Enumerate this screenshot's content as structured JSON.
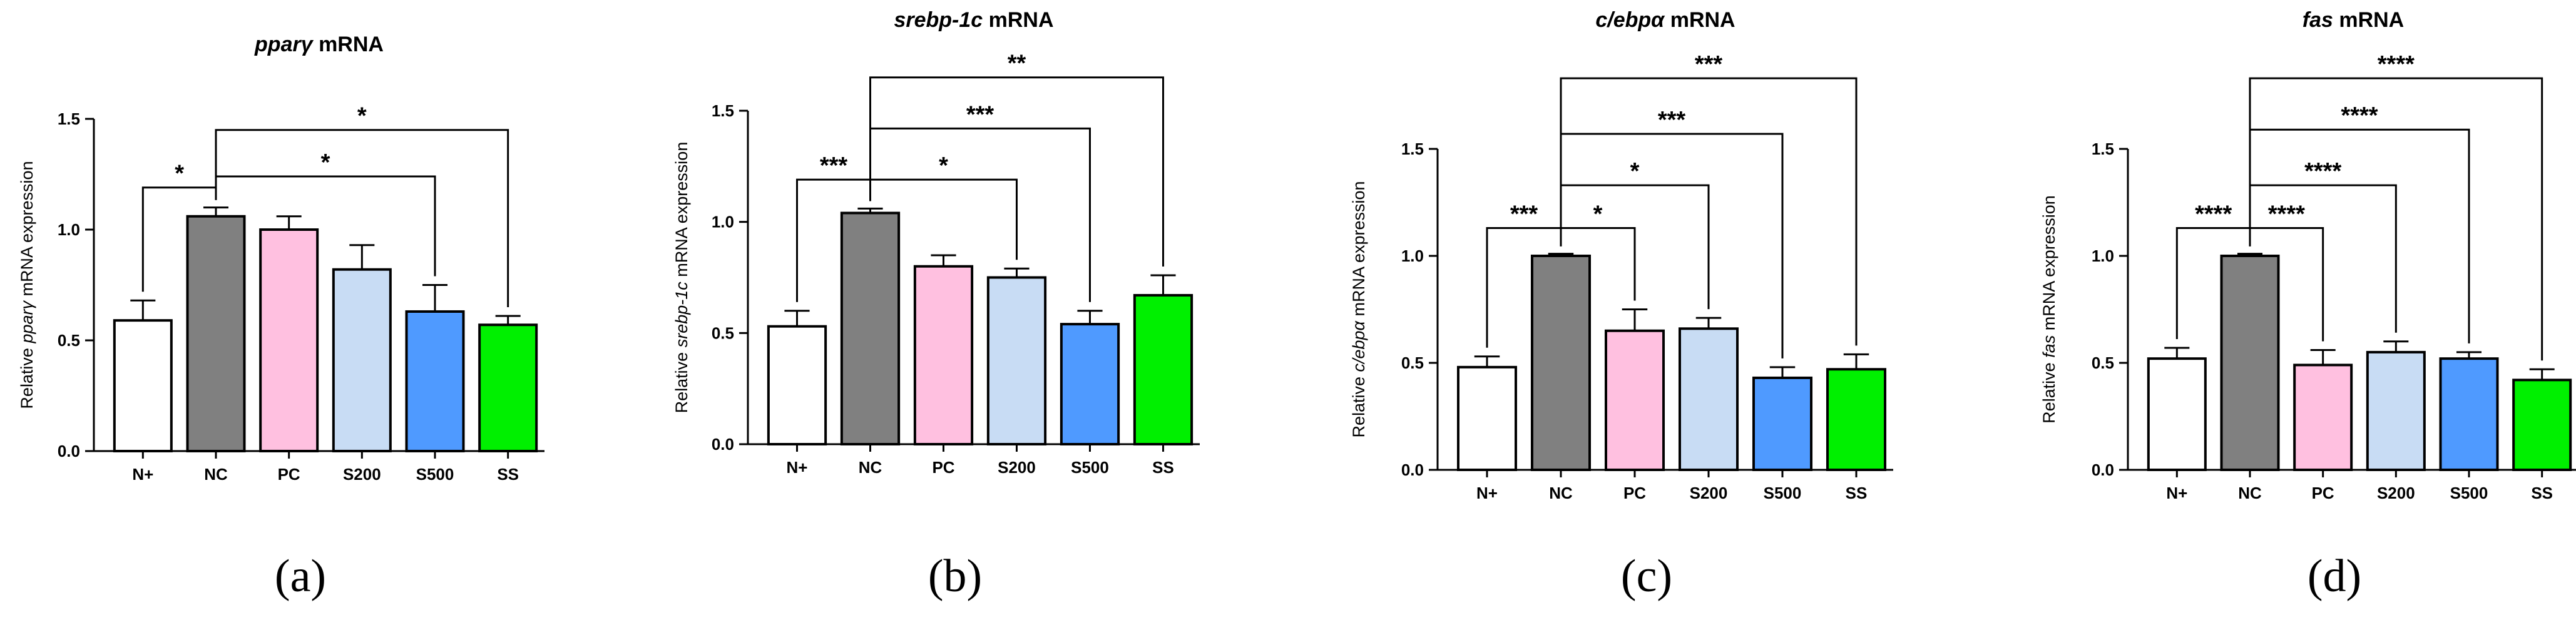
{
  "colors": {
    "N+": "#ffffff",
    "NC": "#808080",
    "PC": "#ffc0e0",
    "S200": "#c8dcf4",
    "S500": "#4f9aff",
    "SS": "#00f000"
  },
  "chart_data": [
    {
      "type": "bar",
      "panel_label": "(a)",
      "title_gene": "pparγ",
      "title_suffix": " mRNA",
      "ylabel_prefix": "Relative ",
      "ylabel_gene": "pparγ",
      "ylabel_suffix": " mRNA expression",
      "ylim": [
        0,
        1.5
      ],
      "yticks": [
        "0.0",
        "0.5",
        "1.0",
        "1.5"
      ],
      "categories": [
        "N+",
        "NC",
        "PC",
        "S200",
        "S500",
        "SS"
      ],
      "values": [
        0.59,
        1.06,
        1.0,
        0.82,
        0.63,
        0.57
      ],
      "errors": [
        0.09,
        0.04,
        0.06,
        0.11,
        0.12,
        0.04
      ],
      "significance": [
        {
          "from": 1,
          "to": 0,
          "label": "*",
          "y": 1.19
        },
        {
          "from": 1,
          "to": 4,
          "label": "*",
          "y": 1.24
        },
        {
          "from": 1,
          "to": 5,
          "label": "*",
          "y": 1.45
        }
      ]
    },
    {
      "type": "bar",
      "panel_label": "(b)",
      "title_gene": "srebp-1c",
      "title_suffix": " mRNA",
      "ylabel_prefix": "Relative ",
      "ylabel_gene": "srebp-1c",
      "ylabel_suffix": " mRNA expression",
      "ylim": [
        0,
        1.5
      ],
      "yticks": [
        "0.0",
        "0.5",
        "1.0",
        "1.5"
      ],
      "categories": [
        "N+",
        "NC",
        "PC",
        "S200",
        "S500",
        "SS"
      ],
      "values": [
        0.53,
        1.04,
        0.8,
        0.75,
        0.54,
        0.67
      ],
      "errors": [
        0.07,
        0.02,
        0.05,
        0.04,
        0.06,
        0.09
      ],
      "significance": [
        {
          "from": 1,
          "to": 0,
          "label": "***",
          "y": 1.19
        },
        {
          "from": 1,
          "to": 3,
          "label": "*",
          "y": 1.19
        },
        {
          "from": 1,
          "to": 4,
          "label": "***",
          "y": 1.42
        },
        {
          "from": 1,
          "to": 5,
          "label": "**",
          "y": 1.65
        }
      ]
    },
    {
      "type": "bar",
      "panel_label": "(c)",
      "title_gene": "c/ebpα",
      "title_suffix": " mRNA",
      "ylabel_prefix": "Relative ",
      "ylabel_gene": "c/ebpα",
      "ylabel_suffix": " mRNA expression",
      "ylim": [
        0,
        1.5
      ],
      "yticks": [
        "0.0",
        "0.5",
        "1.0",
        "1.5"
      ],
      "categories": [
        "N+",
        "NC",
        "PC",
        "S200",
        "S500",
        "SS"
      ],
      "values": [
        0.48,
        1.0,
        0.65,
        0.66,
        0.43,
        0.47
      ],
      "errors": [
        0.05,
        0.01,
        0.1,
        0.05,
        0.05,
        0.07
      ],
      "significance": [
        {
          "from": 1,
          "to": 0,
          "label": "***",
          "y": 1.13
        },
        {
          "from": 1,
          "to": 2,
          "label": "*",
          "y": 1.13
        },
        {
          "from": 1,
          "to": 3,
          "label": "*",
          "y": 1.33
        },
        {
          "from": 1,
          "to": 4,
          "label": "***",
          "y": 1.57
        },
        {
          "from": 1,
          "to": 5,
          "label": "***",
          "y": 1.83
        }
      ]
    },
    {
      "type": "bar",
      "panel_label": "(d)",
      "title_gene": "fas",
      "title_suffix": " mRNA",
      "ylabel_prefix": "Relative ",
      "ylabel_gene": "fas",
      "ylabel_suffix": " mRNA expression",
      "ylim": [
        0,
        1.5
      ],
      "yticks": [
        "0.0",
        "0.5",
        "1.0",
        "1.5"
      ],
      "categories": [
        "N+",
        "NC",
        "PC",
        "S200",
        "S500",
        "SS"
      ],
      "values": [
        0.52,
        1.0,
        0.49,
        0.55,
        0.52,
        0.42
      ],
      "errors": [
        0.05,
        0.01,
        0.07,
        0.05,
        0.03,
        0.05
      ],
      "significance": [
        {
          "from": 1,
          "to": 0,
          "label": "****",
          "y": 1.13
        },
        {
          "from": 1,
          "to": 2,
          "label": "****",
          "y": 1.13
        },
        {
          "from": 1,
          "to": 3,
          "label": "****",
          "y": 1.33
        },
        {
          "from": 1,
          "to": 4,
          "label": "****",
          "y": 1.59
        },
        {
          "from": 1,
          "to": 5,
          "label": "****",
          "y": 1.83
        }
      ]
    }
  ]
}
